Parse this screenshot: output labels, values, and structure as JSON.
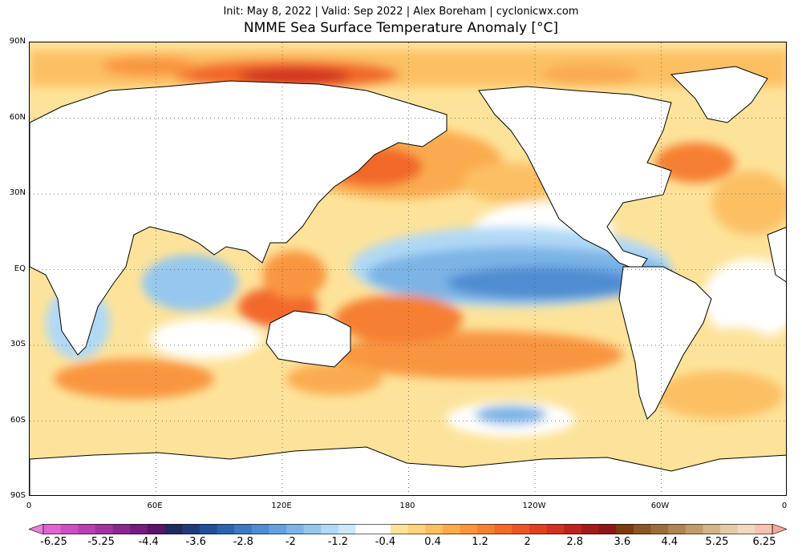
{
  "header": {
    "subtitle": "Init: May 8, 2022 | Valid: Sep 2022 | Alex Boreham | cyclonicwx.com",
    "title": "NMME Sea Surface Temperature Anomaly [°C]"
  },
  "axes": {
    "lat_labels": [
      "90N",
      "60N",
      "30N",
      "EQ",
      "30S",
      "60S",
      "90S"
    ],
    "lon_labels": [
      "0",
      "60E",
      "120E",
      "180",
      "120W",
      "60W",
      "0"
    ]
  },
  "colorbar": {
    "tick_labels": [
      "-6.25",
      "-5.25",
      "-4.4",
      "-3.6",
      "-2.8",
      "-2",
      "-1.2",
      "-0.4",
      "0.4",
      "1.2",
      "2",
      "2.8",
      "3.6",
      "4.4",
      "5.25",
      "6.25"
    ],
    "colors": [
      "#e680d8",
      "#dd66cf",
      "#cc4ec0",
      "#b73fb0",
      "#a1329f",
      "#8a278d",
      "#731c7b",
      "#5c1468",
      "#202a5c",
      "#1e3a78",
      "#244f95",
      "#2d63ad",
      "#3d78c2",
      "#4f8cd2",
      "#64a0dd",
      "#7cb4e6",
      "#96c7ee",
      "#b0d9f5",
      "#cae8fa",
      "#ffffff",
      "#ffffff",
      "#fde39a",
      "#fdd27c",
      "#fcc063",
      "#fbab4f",
      "#f9953f",
      "#f67f33",
      "#f2692b",
      "#ea5426",
      "#df4123",
      "#d03120",
      "#bd231e",
      "#a6191b",
      "#8f1518",
      "#7a3b10",
      "#8b5524",
      "#9c6c3a",
      "#ae8452",
      "#c09c6b",
      "#d2b487",
      "#e3cca5",
      "#f3d7bf",
      "#f8c2b0",
      "#f6a896"
    ]
  },
  "chart_data": {
    "type": "heatmap",
    "title": "NMME Sea Surface Temperature Anomaly [°C]",
    "subtitle": "Init: May 8, 2022 | Valid: Sep 2022 | Alex Boreham | cyclonicwx.com",
    "projection": "equirectangular, centered on 180",
    "lon_range": [
      0,
      360
    ],
    "lat_range": [
      -90,
      90
    ],
    "colorbar_range": [
      -6.25,
      6.25
    ],
    "features": [
      {
        "region": "Equatorial central-east Pacific",
        "anomaly": -1.2
      },
      {
        "region": "North Pacific (west)",
        "anomaly": 2.0
      },
      {
        "region": "Arctic Ocean north of Eurasia",
        "anomaly": 2.8
      },
      {
        "region": "Southwest Pacific",
        "anomaly": 1.6
      },
      {
        "region": "Maritime Continent",
        "anomaly": 1.6
      },
      {
        "region": "Southern Ocean south of South Pacific",
        "anomaly": -1.6
      },
      {
        "region": "Western North Atlantic",
        "anomaly": 1.6
      },
      {
        "region": "Western Indian Ocean",
        "anomaly": -0.6
      }
    ]
  }
}
